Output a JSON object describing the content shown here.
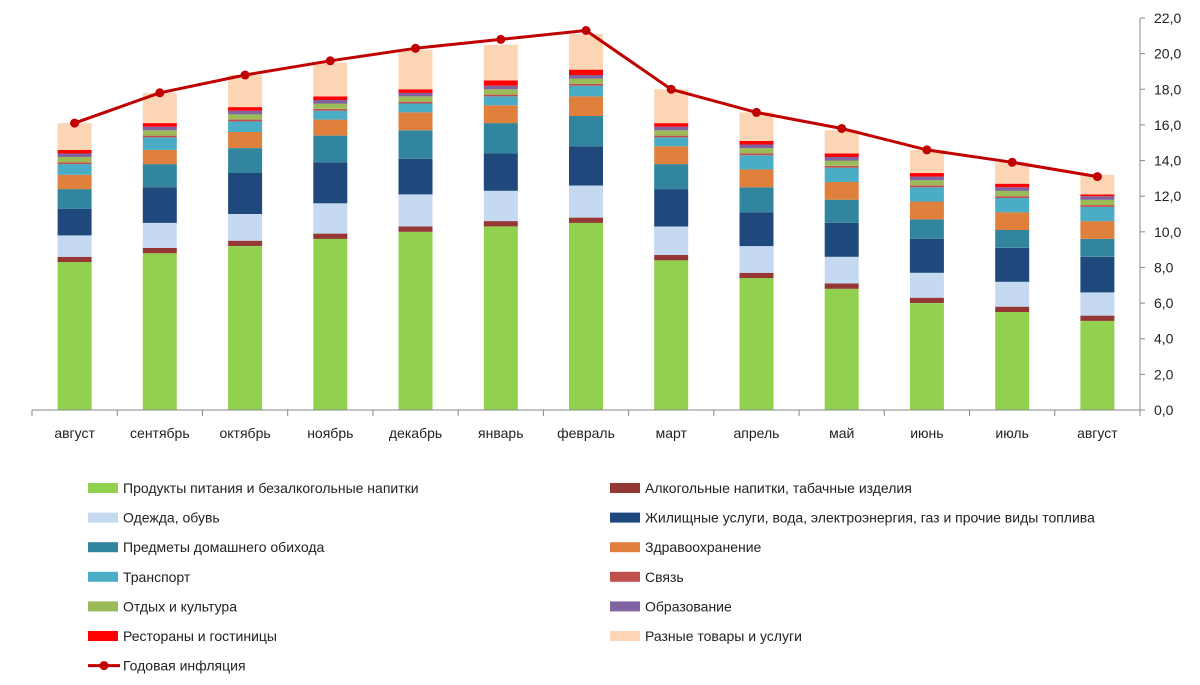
{
  "chart_data": {
    "type": "bar",
    "stacked": true,
    "categories": [
      "август",
      "сентябрь",
      "октябрь",
      "ноябрь",
      "декабрь",
      "январь",
      "февраль",
      "март",
      "апрель",
      "май",
      "июнь",
      "июль",
      "август"
    ],
    "yaxis": {
      "side": "right",
      "min": 0,
      "max": 22,
      "step": 2,
      "ticks": [
        "0,0",
        "2,0",
        "4,0",
        "6,0",
        "8,0",
        "10,0",
        "12,0",
        "14,0",
        "16,0",
        "18,0",
        "20,0",
        "22,0"
      ]
    },
    "grid": false,
    "legend_position": "bottom",
    "series": [
      {
        "name": "Продукты питания и безалкогольные напитки",
        "color": "#92d050",
        "values": [
          8.3,
          8.8,
          9.2,
          9.6,
          10.0,
          10.3,
          10.5,
          8.4,
          7.4,
          6.8,
          6.0,
          5.5,
          5.0
        ]
      },
      {
        "name": "Алкогольные напитки, табачные изделия",
        "color": "#953735",
        "values": [
          0.3,
          0.3,
          0.3,
          0.3,
          0.3,
          0.3,
          0.3,
          0.3,
          0.3,
          0.3,
          0.3,
          0.3,
          0.3
        ]
      },
      {
        "name": "Одежда, обувь",
        "color": "#c5d9f1",
        "values": [
          1.2,
          1.4,
          1.5,
          1.7,
          1.8,
          1.7,
          1.8,
          1.6,
          1.5,
          1.5,
          1.4,
          1.4,
          1.3
        ]
      },
      {
        "name": "Жилищные услуги, вода, электроэнергия, газ и прочие виды топлива",
        "color": "#1f497d",
        "values": [
          1.5,
          2.0,
          2.3,
          2.3,
          2.0,
          2.1,
          2.2,
          2.1,
          1.9,
          1.9,
          1.9,
          1.9,
          2.0
        ]
      },
      {
        "name": "Предметы домашнего обихода",
        "color": "#31859c",
        "values": [
          1.1,
          1.3,
          1.4,
          1.5,
          1.6,
          1.7,
          1.7,
          1.4,
          1.4,
          1.3,
          1.1,
          1.0,
          1.0
        ]
      },
      {
        "name": "Здравоохранение",
        "color": "#e0803d",
        "values": [
          0.8,
          0.8,
          0.9,
          0.9,
          1.0,
          1.0,
          1.1,
          1.0,
          1.0,
          1.0,
          1.0,
          1.0,
          1.0
        ]
      },
      {
        "name": "Транспорт",
        "color": "#4bacc6",
        "values": [
          0.6,
          0.7,
          0.6,
          0.5,
          0.5,
          0.5,
          0.6,
          0.5,
          0.8,
          0.8,
          0.8,
          0.8,
          0.8
        ]
      },
      {
        "name": "Связь",
        "color": "#c0504d",
        "values": [
          0.1,
          0.1,
          0.1,
          0.1,
          0.1,
          0.1,
          0.1,
          0.1,
          0.1,
          0.1,
          0.1,
          0.1,
          0.1
        ]
      },
      {
        "name": "Отдых и культура",
        "color": "#9bbb59",
        "values": [
          0.3,
          0.3,
          0.3,
          0.3,
          0.3,
          0.3,
          0.3,
          0.3,
          0.3,
          0.3,
          0.3,
          0.3,
          0.3
        ]
      },
      {
        "name": "Образование",
        "color": "#8064a2",
        "values": [
          0.2,
          0.2,
          0.2,
          0.2,
          0.2,
          0.2,
          0.2,
          0.2,
          0.2,
          0.2,
          0.2,
          0.2,
          0.2
        ]
      },
      {
        "name": "Рестораны и гостиницы",
        "color": "#ff0000",
        "values": [
          0.2,
          0.2,
          0.2,
          0.2,
          0.2,
          0.3,
          0.3,
          0.2,
          0.2,
          0.2,
          0.2,
          0.2,
          0.1
        ]
      },
      {
        "name": "Разные товары и услуги",
        "color": "#fcd5b5",
        "values": [
          1.5,
          1.7,
          1.8,
          1.9,
          2.2,
          2.0,
          2.0,
          1.9,
          1.6,
          1.3,
          1.3,
          1.2,
          1.1
        ]
      }
    ],
    "line_series": {
      "name": "Годовая инфляция",
      "color": "#c00000",
      "values": [
        16.1,
        17.8,
        18.8,
        19.6,
        20.3,
        20.8,
        21.3,
        18.0,
        16.7,
        15.8,
        14.6,
        13.9,
        13.1
      ]
    }
  }
}
